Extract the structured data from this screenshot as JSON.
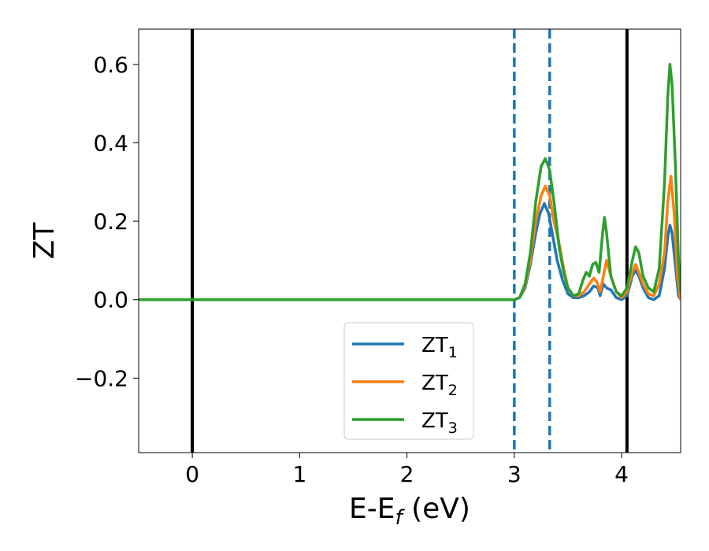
{
  "chart_data": {
    "type": "line",
    "xlabel": "E-E",
    "xlabel_sub": "f",
    "xlabel_unit": " (eV)",
    "ylabel": "ZT",
    "xlim": [
      -0.5,
      4.55
    ],
    "ylim": [
      -0.39,
      0.69
    ],
    "xticks": [
      0,
      1,
      2,
      3,
      4
    ],
    "xtick_labels": [
      "0",
      "1",
      "2",
      "3",
      "4"
    ],
    "yticks": [
      -0.2,
      0.0,
      0.2,
      0.4,
      0.6
    ],
    "ytick_labels": [
      "−0.2",
      "0.0",
      "0.2",
      "0.4",
      "0.6"
    ],
    "grid": false,
    "legend_position": "lower-center",
    "vertical_lines": [
      {
        "x": 0.0,
        "style": "solid",
        "color": "#000000"
      },
      {
        "x": 4.05,
        "style": "solid",
        "color": "#000000"
      },
      {
        "x": 3.0,
        "style": "dashed",
        "color": "#1f77b4"
      },
      {
        "x": 3.33,
        "style": "dashed",
        "color": "#1f77b4"
      }
    ],
    "series": [
      {
        "name": "ZT",
        "name_sub": "1",
        "color": "#1f77b4",
        "points": [
          [
            -0.5,
            0
          ],
          [
            3.0,
            0
          ],
          [
            3.05,
            0.005
          ],
          [
            3.1,
            0.03
          ],
          [
            3.15,
            0.09
          ],
          [
            3.2,
            0.17
          ],
          [
            3.24,
            0.22
          ],
          [
            3.28,
            0.245
          ],
          [
            3.32,
            0.22
          ],
          [
            3.36,
            0.16
          ],
          [
            3.4,
            0.1
          ],
          [
            3.45,
            0.05
          ],
          [
            3.5,
            0.015
          ],
          [
            3.55,
            0.005
          ],
          [
            3.6,
            0.005
          ],
          [
            3.65,
            0.01
          ],
          [
            3.7,
            0.02
          ],
          [
            3.74,
            0.035
          ],
          [
            3.78,
            0.03
          ],
          [
            3.8,
            0.01
          ],
          [
            3.83,
            0.04
          ],
          [
            3.86,
            0.03
          ],
          [
            3.9,
            0.025
          ],
          [
            3.95,
            0.005
          ],
          [
            4.0,
            0.0
          ],
          [
            4.05,
            0.01
          ],
          [
            4.1,
            0.06
          ],
          [
            4.13,
            0.075
          ],
          [
            4.16,
            0.06
          ],
          [
            4.2,
            0.03
          ],
          [
            4.25,
            0.005
          ],
          [
            4.3,
            0.0
          ],
          [
            4.35,
            0.01
          ],
          [
            4.4,
            0.08
          ],
          [
            4.43,
            0.16
          ],
          [
            4.45,
            0.19
          ],
          [
            4.47,
            0.17
          ],
          [
            4.5,
            0.09
          ],
          [
            4.53,
            0.01
          ],
          [
            4.55,
            0.0
          ]
        ]
      },
      {
        "name": "ZT",
        "name_sub": "2",
        "color": "#ff7f0e",
        "points": [
          [
            -0.5,
            0
          ],
          [
            3.0,
            0
          ],
          [
            3.05,
            0.005
          ],
          [
            3.1,
            0.035
          ],
          [
            3.15,
            0.1
          ],
          [
            3.2,
            0.2
          ],
          [
            3.25,
            0.265
          ],
          [
            3.29,
            0.29
          ],
          [
            3.33,
            0.265
          ],
          [
            3.37,
            0.2
          ],
          [
            3.42,
            0.14
          ],
          [
            3.46,
            0.08
          ],
          [
            3.5,
            0.03
          ],
          [
            3.55,
            0.01
          ],
          [
            3.6,
            0.01
          ],
          [
            3.65,
            0.02
          ],
          [
            3.7,
            0.04
          ],
          [
            3.74,
            0.055
          ],
          [
            3.77,
            0.045
          ],
          [
            3.8,
            0.02
          ],
          [
            3.83,
            0.06
          ],
          [
            3.86,
            0.1
          ],
          [
            3.9,
            0.06
          ],
          [
            3.95,
            0.02
          ],
          [
            4.0,
            0.005
          ],
          [
            4.05,
            0.02
          ],
          [
            4.1,
            0.07
          ],
          [
            4.13,
            0.09
          ],
          [
            4.16,
            0.07
          ],
          [
            4.2,
            0.04
          ],
          [
            4.25,
            0.015
          ],
          [
            4.3,
            0.01
          ],
          [
            4.35,
            0.04
          ],
          [
            4.4,
            0.12
          ],
          [
            4.43,
            0.25
          ],
          [
            4.46,
            0.315
          ],
          [
            4.49,
            0.22
          ],
          [
            4.52,
            0.06
          ],
          [
            4.55,
            0.0
          ]
        ]
      },
      {
        "name": "ZT",
        "name_sub": "3",
        "color": "#2ca02c",
        "points": [
          [
            -0.5,
            0
          ],
          [
            3.0,
            0
          ],
          [
            3.05,
            0.005
          ],
          [
            3.1,
            0.04
          ],
          [
            3.15,
            0.12
          ],
          [
            3.2,
            0.25
          ],
          [
            3.25,
            0.34
          ],
          [
            3.29,
            0.36
          ],
          [
            3.33,
            0.33
          ],
          [
            3.37,
            0.25
          ],
          [
            3.42,
            0.13
          ],
          [
            3.46,
            0.07
          ],
          [
            3.5,
            0.03
          ],
          [
            3.55,
            0.01
          ],
          [
            3.6,
            0.015
          ],
          [
            3.64,
            0.05
          ],
          [
            3.67,
            0.07
          ],
          [
            3.7,
            0.06
          ],
          [
            3.73,
            0.09
          ],
          [
            3.76,
            0.095
          ],
          [
            3.79,
            0.07
          ],
          [
            3.82,
            0.16
          ],
          [
            3.84,
            0.21
          ],
          [
            3.86,
            0.17
          ],
          [
            3.9,
            0.06
          ],
          [
            3.95,
            0.02
          ],
          [
            4.0,
            0.01
          ],
          [
            4.05,
            0.03
          ],
          [
            4.1,
            0.1
          ],
          [
            4.13,
            0.135
          ],
          [
            4.16,
            0.12
          ],
          [
            4.2,
            0.06
          ],
          [
            4.25,
            0.03
          ],
          [
            4.3,
            0.02
          ],
          [
            4.35,
            0.08
          ],
          [
            4.4,
            0.3
          ],
          [
            4.43,
            0.52
          ],
          [
            4.45,
            0.6
          ],
          [
            4.47,
            0.55
          ],
          [
            4.5,
            0.35
          ],
          [
            4.53,
            0.1
          ],
          [
            4.55,
            0.02
          ]
        ]
      }
    ]
  }
}
